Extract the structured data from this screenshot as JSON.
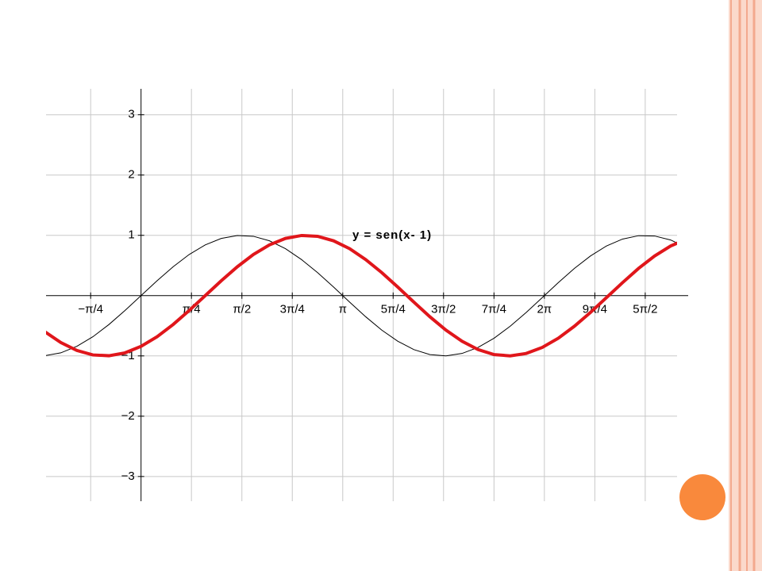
{
  "chart_data": {
    "type": "line",
    "x": [
      -1.5,
      -1.25,
      -1,
      -0.75,
      -0.5,
      -0.25,
      0,
      0.25,
      0.5,
      0.75,
      1,
      1.25,
      1.5,
      1.75,
      2,
      2.25,
      2.5,
      2.75,
      3,
      3.25,
      3.5,
      3.75,
      4,
      4.25,
      4.5,
      4.75,
      5,
      5.25,
      5.5,
      5.75,
      6,
      6.25,
      6.5,
      6.75,
      7,
      7.25,
      7.5,
      7.75,
      8,
      8.25,
      8.5
    ],
    "series": [
      {
        "color": "#000000",
        "values": [
          -0.997,
          -0.949,
          -0.841,
          -0.682,
          -0.479,
          -0.247,
          0,
          0.247,
          0.479,
          0.682,
          0.841,
          0.949,
          0.997,
          0.984,
          0.909,
          0.778,
          0.598,
          0.382,
          0.141,
          -0.108,
          -0.351,
          -0.572,
          -0.757,
          -0.895,
          -0.978,
          -0.999,
          -0.959,
          -0.859,
          -0.706,
          -0.508,
          -0.279,
          -0.033,
          0.215,
          0.451,
          0.657,
          0.823,
          0.938,
          0.994,
          0.989,
          0.923,
          0.798
        ]
      },
      {
        "name": "y = sen(x- 1)",
        "color": "#e0161b",
        "values": [
          -0.598,
          -0.778,
          -0.909,
          -0.984,
          -0.997,
          -0.949,
          -0.841,
          -0.682,
          -0.479,
          -0.247,
          0,
          0.247,
          0.479,
          0.682,
          0.841,
          0.949,
          0.997,
          0.984,
          0.909,
          0.778,
          0.598,
          0.382,
          0.141,
          -0.108,
          -0.351,
          -0.572,
          -0.757,
          -0.895,
          -0.978,
          -0.999,
          -0.959,
          -0.859,
          -0.706,
          -0.508,
          -0.279,
          -0.033,
          0.215,
          0.451,
          0.657,
          0.823,
          0.938
        ]
      }
    ],
    "xlim": [
      -1.48,
      8.35
    ],
    "ylim": [
      -3.41,
      3.43
    ],
    "xticks": [
      {
        "value": -0.785,
        "label": "−π/4"
      },
      {
        "value": 0.785,
        "label": "π/4"
      },
      {
        "value": 1.571,
        "label": "π/2"
      },
      {
        "value": 2.356,
        "label": "3π/4"
      },
      {
        "value": 3.142,
        "label": "π"
      },
      {
        "value": 3.927,
        "label": "5π/4"
      },
      {
        "value": 4.712,
        "label": "3π/2"
      },
      {
        "value": 5.498,
        "label": "7π/4"
      },
      {
        "value": 6.283,
        "label": "2π"
      },
      {
        "value": 7.069,
        "label": "9π/4"
      },
      {
        "value": 7.854,
        "label": "5π/2"
      }
    ],
    "yticks": [
      {
        "value": -3,
        "label": "−3"
      },
      {
        "value": -2,
        "label": "−2"
      },
      {
        "value": -1,
        "label": "−1"
      },
      1,
      2,
      3
    ],
    "grid": true
  }
}
